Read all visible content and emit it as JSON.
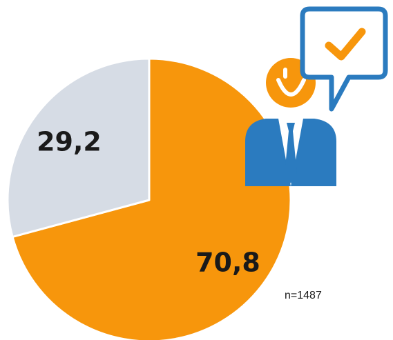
{
  "chart_data": {
    "type": "pie",
    "values": [
      70.8,
      29.2
    ],
    "value_labels": [
      "70,8",
      "29,2"
    ],
    "colors": [
      "#f7960c",
      "#d6dce5"
    ],
    "annotation": "n=1487"
  }
}
